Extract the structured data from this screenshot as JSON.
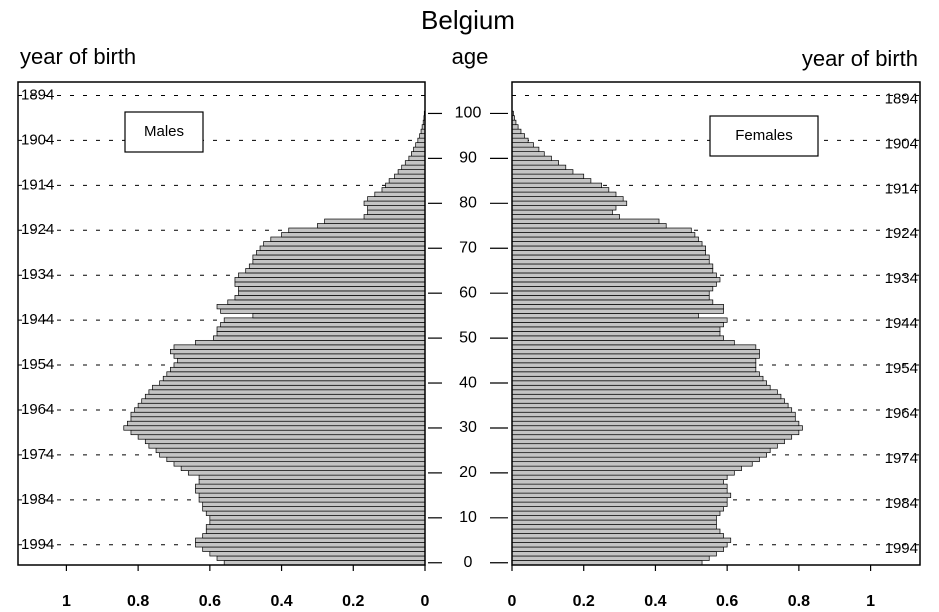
{
  "chart_data": {
    "type": "pyramid",
    "title": "Belgium",
    "y_label": "age",
    "year_label": "year of birth",
    "categories": [
      0,
      1,
      2,
      3,
      4,
      5,
      6,
      7,
      8,
      9,
      10,
      11,
      12,
      13,
      14,
      15,
      16,
      17,
      18,
      19,
      20,
      21,
      22,
      23,
      24,
      25,
      26,
      27,
      28,
      29,
      30,
      31,
      32,
      33,
      34,
      35,
      36,
      37,
      38,
      39,
      40,
      41,
      42,
      43,
      44,
      45,
      46,
      47,
      48,
      49,
      50,
      51,
      52,
      53,
      54,
      55,
      56,
      57,
      58,
      59,
      60,
      61,
      62,
      63,
      64,
      65,
      66,
      67,
      68,
      69,
      70,
      71,
      72,
      73,
      74,
      75,
      76,
      77,
      78,
      79,
      80,
      81,
      82,
      83,
      84,
      85,
      86,
      87,
      88,
      89,
      90,
      91,
      92,
      93,
      94,
      95,
      96,
      97,
      98,
      99,
      100
    ],
    "series": [
      {
        "name": "Males",
        "color": "#c4c4c4",
        "values": [
          0.56,
          0.58,
          0.6,
          0.62,
          0.64,
          0.64,
          0.62,
          0.61,
          0.61,
          0.6,
          0.6,
          0.61,
          0.62,
          0.62,
          0.63,
          0.63,
          0.64,
          0.64,
          0.63,
          0.63,
          0.66,
          0.68,
          0.7,
          0.72,
          0.74,
          0.75,
          0.77,
          0.78,
          0.8,
          0.82,
          0.84,
          0.83,
          0.82,
          0.82,
          0.81,
          0.8,
          0.79,
          0.78,
          0.77,
          0.76,
          0.74,
          0.73,
          0.72,
          0.71,
          0.7,
          0.69,
          0.7,
          0.71,
          0.7,
          0.64,
          0.59,
          0.58,
          0.58,
          0.57,
          0.56,
          0.48,
          0.57,
          0.58,
          0.55,
          0.53,
          0.52,
          0.52,
          0.53,
          0.53,
          0.52,
          0.5,
          0.49,
          0.48,
          0.48,
          0.47,
          0.46,
          0.45,
          0.43,
          0.4,
          0.38,
          0.3,
          0.28,
          0.17,
          0.16,
          0.16,
          0.17,
          0.16,
          0.14,
          0.12,
          0.11,
          0.1,
          0.085,
          0.075,
          0.065,
          0.055,
          0.045,
          0.038,
          0.032,
          0.026,
          0.02,
          0.015,
          0.011,
          0.008,
          0.005,
          0.003,
          0.002
        ]
      },
      {
        "name": "Females",
        "color": "#c4c4c4",
        "values": [
          0.53,
          0.55,
          0.57,
          0.59,
          0.6,
          0.61,
          0.59,
          0.58,
          0.57,
          0.57,
          0.57,
          0.58,
          0.59,
          0.6,
          0.6,
          0.61,
          0.6,
          0.6,
          0.59,
          0.6,
          0.62,
          0.64,
          0.67,
          0.69,
          0.71,
          0.72,
          0.74,
          0.76,
          0.78,
          0.8,
          0.81,
          0.8,
          0.79,
          0.79,
          0.78,
          0.77,
          0.76,
          0.75,
          0.74,
          0.72,
          0.71,
          0.7,
          0.69,
          0.68,
          0.68,
          0.68,
          0.69,
          0.69,
          0.68,
          0.62,
          0.59,
          0.58,
          0.58,
          0.59,
          0.6,
          0.52,
          0.59,
          0.59,
          0.56,
          0.55,
          0.55,
          0.56,
          0.57,
          0.58,
          0.57,
          0.56,
          0.56,
          0.55,
          0.55,
          0.54,
          0.54,
          0.53,
          0.52,
          0.51,
          0.5,
          0.43,
          0.41,
          0.3,
          0.28,
          0.29,
          0.32,
          0.31,
          0.29,
          0.27,
          0.25,
          0.22,
          0.2,
          0.17,
          0.15,
          0.13,
          0.11,
          0.09,
          0.075,
          0.06,
          0.045,
          0.035,
          0.025,
          0.017,
          0.011,
          0.007,
          0.004
        ]
      }
    ],
    "xlim": [
      0,
      1.135
    ],
    "xticks": [
      0,
      0.2,
      0.4,
      0.6,
      0.8,
      1
    ],
    "ylim": [
      -0.5,
      107
    ],
    "yticks": [
      0,
      10,
      20,
      30,
      40,
      50,
      60,
      70,
      80,
      90,
      100
    ],
    "y2lim": [
      1998.5,
      1891
    ],
    "y2ticks": [
      1894,
      1904,
      1914,
      1924,
      1934,
      1944,
      1954,
      1964,
      1974,
      1984,
      1994
    ],
    "grid": true
  }
}
